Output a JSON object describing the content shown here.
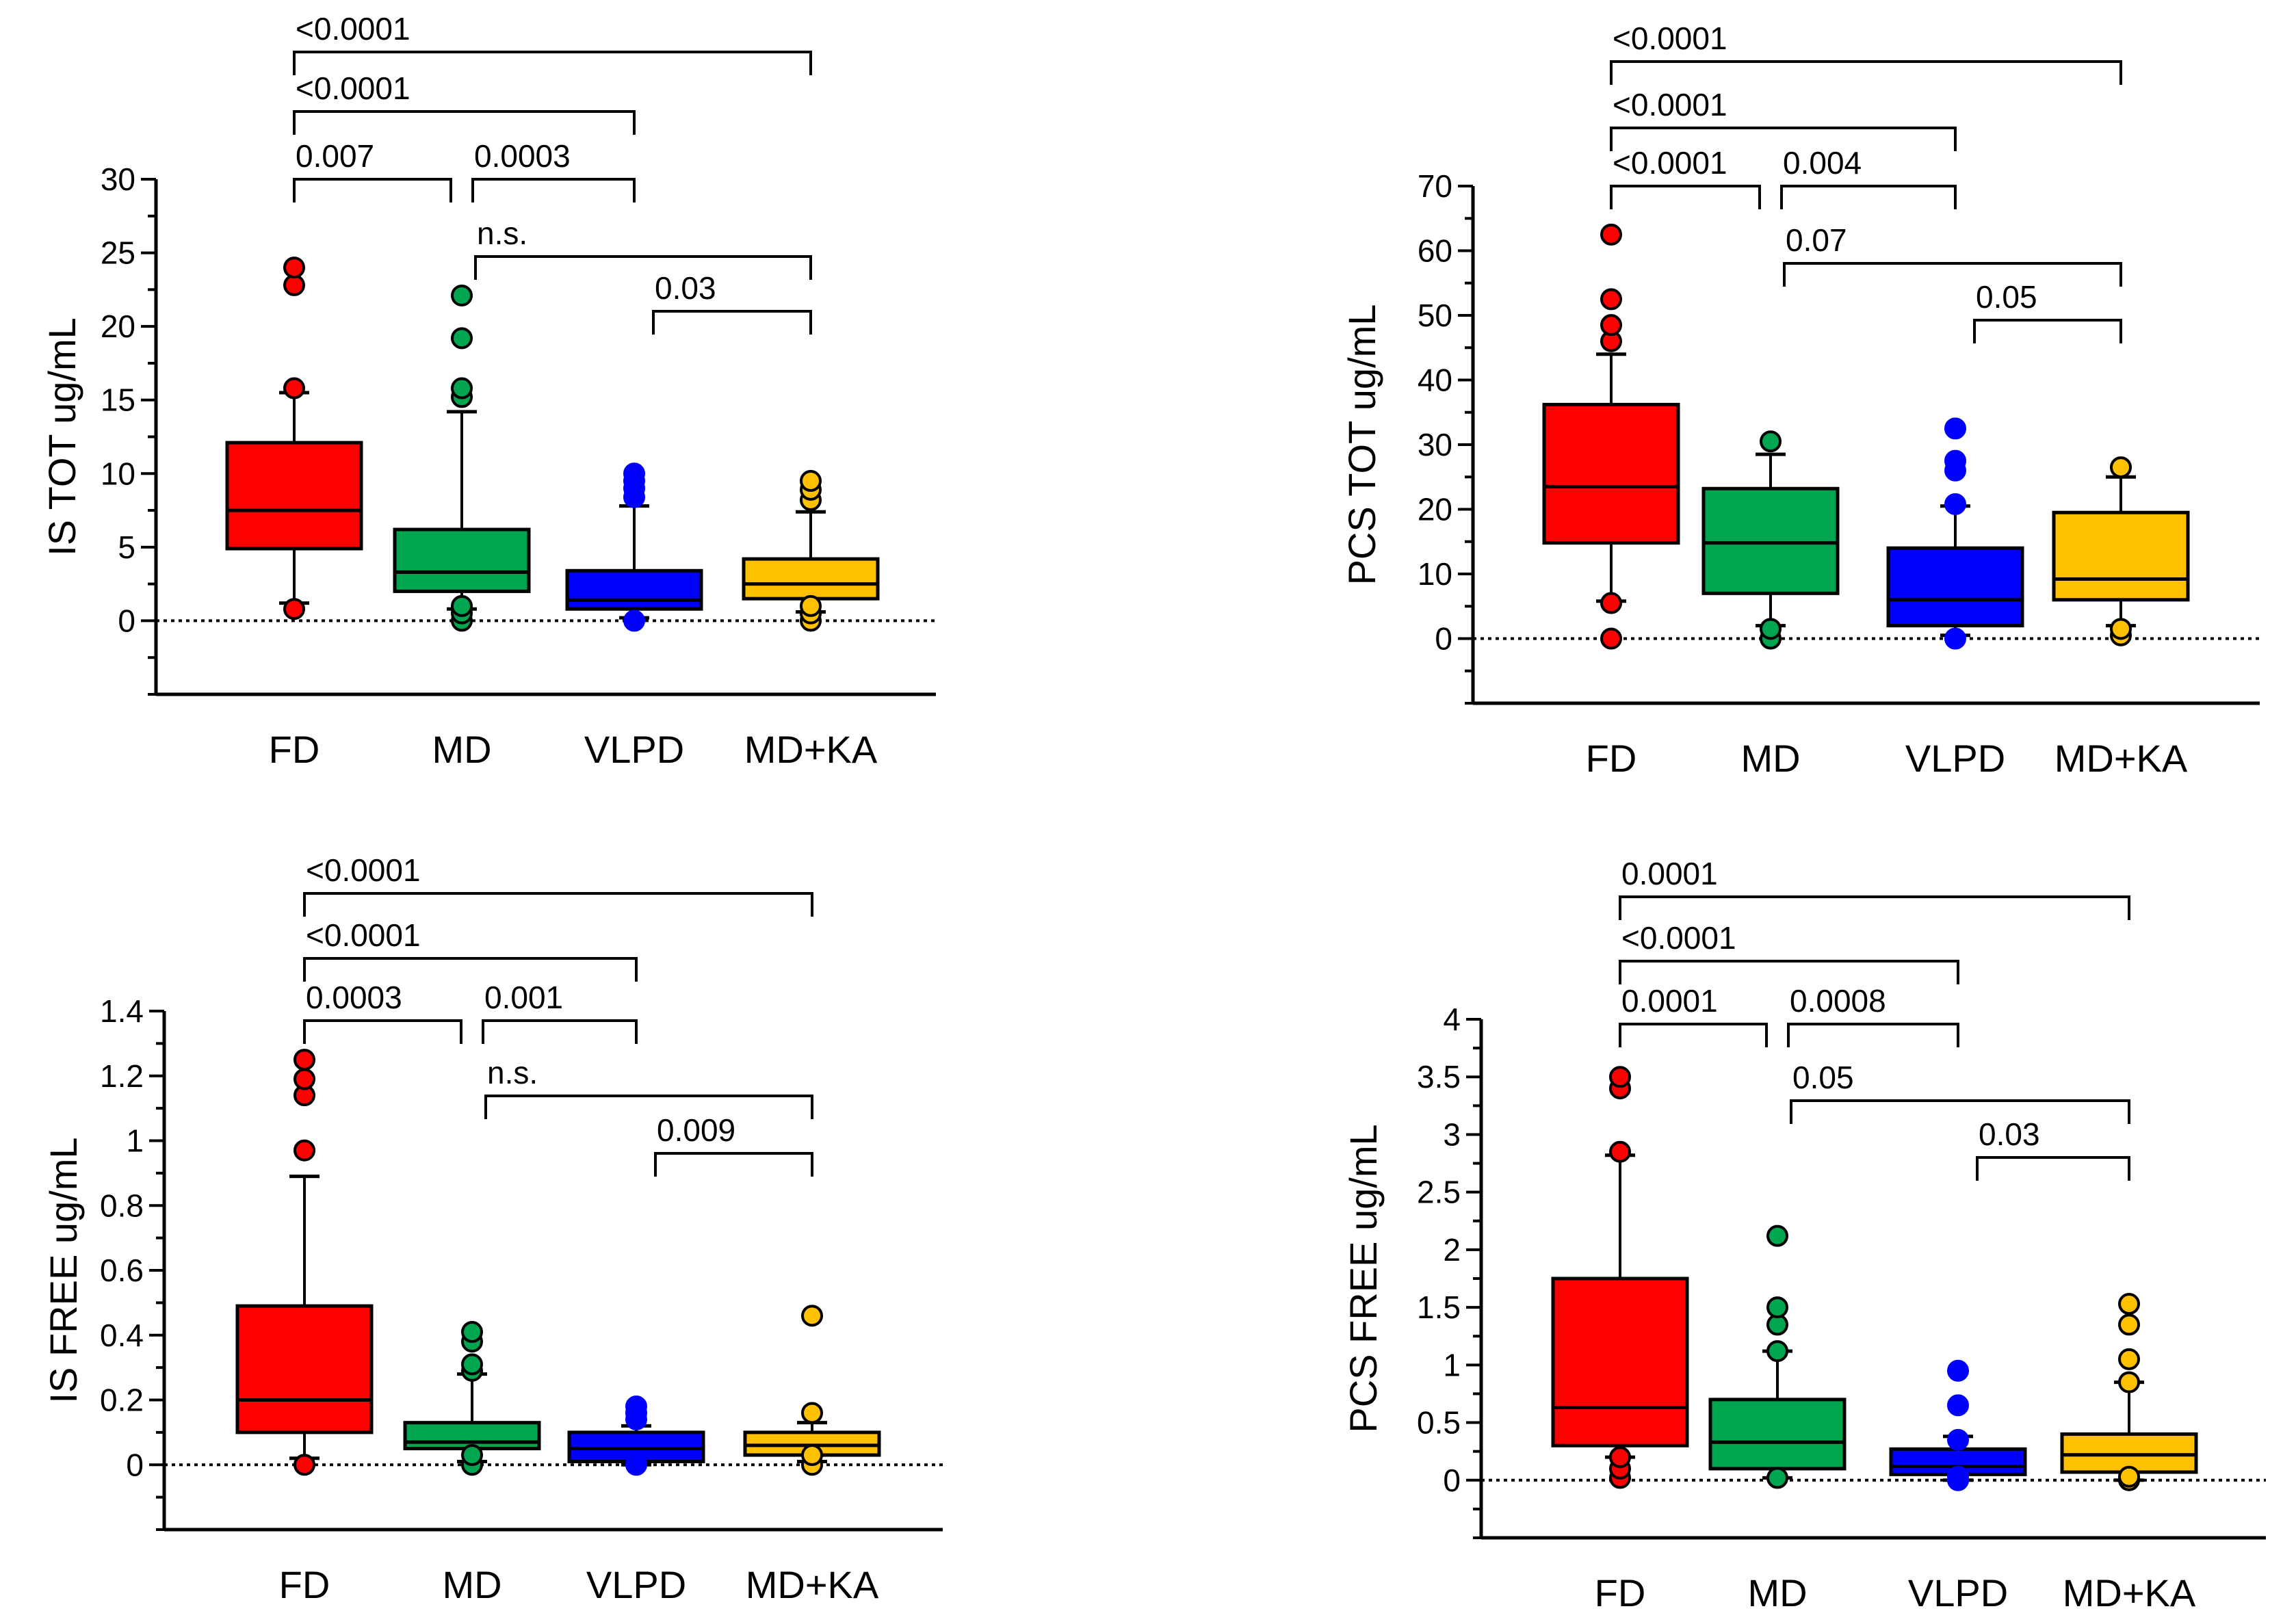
{
  "colors": {
    "FD": "#ff0000",
    "MD": "#00a550",
    "VLPD": "#0000ff",
    "MD+KA": "#ffc000",
    "axis": "#000000"
  },
  "chart_data": [
    {
      "type": "box",
      "ylabel": "IS TOT ug/mL",
      "categories": [
        "FD",
        "MD",
        "VLPD",
        "MD+KA"
      ],
      "yticks": [
        0,
        5,
        10,
        15,
        20,
        25,
        30
      ],
      "ylim": [
        -5,
        30
      ],
      "reference_line": 0,
      "boxes": [
        {
          "category": "FD",
          "q1": 4.9,
          "median": 7.5,
          "q3": 12.1,
          "whisker_low": 1.2,
          "whisker_high": 15.5,
          "outliers": [
            0.8,
            15.8,
            22.8,
            24.0
          ]
        },
        {
          "category": "MD",
          "q1": 2.0,
          "median": 3.3,
          "q3": 6.2,
          "whisker_low": 0.8,
          "whisker_high": 14.2,
          "outliers": [
            0.0,
            0.5,
            1.0,
            15.2,
            15.8,
            19.2,
            22.1
          ]
        },
        {
          "category": "VLPD",
          "q1": 0.8,
          "median": 1.4,
          "q3": 3.4,
          "whisker_low": 0.2,
          "whisker_high": 7.8,
          "outliers": [
            0.0,
            8.4,
            9.0,
            9.5,
            10.0
          ]
        },
        {
          "category": "MD+KA",
          "q1": 1.5,
          "median": 2.5,
          "q3": 4.2,
          "whisker_low": 0.6,
          "whisker_high": 7.4,
          "outliers": [
            0.0,
            0.5,
            1.0,
            8.2,
            8.9,
            9.5
          ]
        }
      ],
      "comparisons": [
        {
          "from": "FD",
          "to": "MD",
          "label": "0.007",
          "level": 0
        },
        {
          "from": "MD",
          "to": "VLPD",
          "label": "0.0003",
          "level": 0
        },
        {
          "from": "FD",
          "to": "VLPD",
          "label": "<0.0001",
          "level": 1
        },
        {
          "from": "FD",
          "to": "MD+KA",
          "label": "<0.0001",
          "level": 2
        },
        {
          "from": "MD",
          "to": "MD+KA",
          "label": "n.s.",
          "level": -1
        },
        {
          "from": "VLPD",
          "to": "MD+KA",
          "label": "0.03",
          "level": -2
        }
      ]
    },
    {
      "type": "box",
      "ylabel": "PCS TOT ug/mL",
      "categories": [
        "FD",
        "MD",
        "VLPD",
        "MD+KA"
      ],
      "yticks": [
        0,
        10,
        20,
        30,
        40,
        50,
        60,
        70
      ],
      "ylim": [
        -10,
        70
      ],
      "reference_line": 0,
      "boxes": [
        {
          "category": "FD",
          "q1": 14.8,
          "median": 23.5,
          "q3": 36.2,
          "whisker_low": 5.8,
          "whisker_high": 44.0,
          "outliers": [
            0.0,
            5.5,
            46.0,
            48.5,
            52.5,
            62.5
          ]
        },
        {
          "category": "MD",
          "q1": 7.0,
          "median": 14.8,
          "q3": 23.2,
          "whisker_low": 2.0,
          "whisker_high": 28.5,
          "outliers": [
            0.0,
            1.5,
            30.5
          ]
        },
        {
          "category": "VLPD",
          "q1": 2.0,
          "median": 6.0,
          "q3": 14.0,
          "whisker_low": 0.5,
          "whisker_high": 20.5,
          "outliers": [
            0.0,
            20.8,
            26.0,
            27.5,
            32.5
          ]
        },
        {
          "category": "MD+KA",
          "q1": 6.0,
          "median": 9.2,
          "q3": 19.5,
          "whisker_low": 2.0,
          "whisker_high": 25.0,
          "outliers": [
            0.5,
            1.5,
            26.5
          ]
        }
      ],
      "comparisons": [
        {
          "from": "FD",
          "to": "MD",
          "label": "<0.0001",
          "level": 0
        },
        {
          "from": "MD",
          "to": "VLPD",
          "label": "0.004",
          "level": 0
        },
        {
          "from": "FD",
          "to": "VLPD",
          "label": "<0.0001",
          "level": 1
        },
        {
          "from": "FD",
          "to": "MD+KA",
          "label": "<0.0001",
          "level": 2
        },
        {
          "from": "MD",
          "to": "MD+KA",
          "label": "0.07",
          "level": -1
        },
        {
          "from": "VLPD",
          "to": "MD+KA",
          "label": "0.05",
          "level": -2
        }
      ]
    },
    {
      "type": "box",
      "ylabel": "IS FREE ug/mL",
      "categories": [
        "FD",
        "MD",
        "VLPD",
        "MD+KA"
      ],
      "yticks": [
        0,
        0.2,
        0.4,
        0.6,
        0.8,
        1,
        1.2,
        1.4
      ],
      "ytick_labels": [
        "0",
        "0.2",
        "0.4",
        "0.6",
        "0.8",
        "1",
        "1.2",
        "1.4"
      ],
      "ylim": [
        -0.2,
        1.4
      ],
      "reference_line": 0,
      "boxes": [
        {
          "category": "FD",
          "q1": 0.1,
          "median": 0.2,
          "q3": 0.49,
          "whisker_low": 0.02,
          "whisker_high": 0.89,
          "outliers": [
            0.0,
            0.97,
            1.14,
            1.19,
            1.25
          ]
        },
        {
          "category": "MD",
          "q1": 0.05,
          "median": 0.07,
          "q3": 0.13,
          "whisker_low": 0.01,
          "whisker_high": 0.28,
          "outliers": [
            0.0,
            0.03,
            0.29,
            0.31,
            0.38,
            0.41
          ]
        },
        {
          "category": "VLPD",
          "q1": 0.01,
          "median": 0.05,
          "q3": 0.1,
          "whisker_low": 0.0,
          "whisker_high": 0.12,
          "outliers": [
            0.0,
            0.14,
            0.16,
            0.18
          ]
        },
        {
          "category": "MD+KA",
          "q1": 0.03,
          "median": 0.06,
          "q3": 0.1,
          "whisker_low": 0.01,
          "whisker_high": 0.13,
          "outliers": [
            0.0,
            0.03,
            0.16,
            0.46
          ]
        }
      ],
      "comparisons": [
        {
          "from": "FD",
          "to": "MD",
          "label": "0.0003",
          "level": 0
        },
        {
          "from": "MD",
          "to": "VLPD",
          "label": "0.001",
          "level": 0
        },
        {
          "from": "FD",
          "to": "VLPD",
          "label": "<0.0001",
          "level": 1
        },
        {
          "from": "FD",
          "to": "MD+KA",
          "label": "<0.0001",
          "level": 2
        },
        {
          "from": "MD",
          "to": "MD+KA",
          "label": "n.s.",
          "level": -1
        },
        {
          "from": "VLPD",
          "to": "MD+KA",
          "label": "0.009",
          "level": -2
        }
      ]
    },
    {
      "type": "box",
      "ylabel": "PCS FREE ug/mL",
      "categories": [
        "FD",
        "MD",
        "VLPD",
        "MD+KA"
      ],
      "yticks": [
        0,
        0.5,
        1,
        1.5,
        2,
        2.5,
        3,
        3.5,
        4
      ],
      "ytick_labels": [
        "0",
        "0.5",
        "1",
        "1.5",
        "2",
        "2.5",
        "3",
        "3.5",
        "4"
      ],
      "ylim": [
        -0.5,
        4
      ],
      "reference_line": 0,
      "boxes": [
        {
          "category": "FD",
          "q1": 0.3,
          "median": 0.63,
          "q3": 1.75,
          "whisker_low": 0.2,
          "whisker_high": 2.82,
          "outliers": [
            0.02,
            0.1,
            0.2,
            2.85,
            3.4,
            3.5
          ]
        },
        {
          "category": "MD",
          "q1": 0.1,
          "median": 0.33,
          "q3": 0.7,
          "whisker_low": 0.02,
          "whisker_high": 1.12,
          "outliers": [
            0.02,
            1.12,
            1.35,
            1.5,
            2.12
          ]
        },
        {
          "category": "VLPD",
          "q1": 0.05,
          "median": 0.12,
          "q3": 0.27,
          "whisker_low": 0.0,
          "whisker_high": 0.38,
          "outliers": [
            0.0,
            0.03,
            0.35,
            0.65,
            0.95
          ]
        },
        {
          "category": "MD+KA",
          "q1": 0.07,
          "median": 0.22,
          "q3": 0.4,
          "whisker_low": 0.0,
          "whisker_high": 0.85,
          "outliers": [
            0.0,
            0.03,
            0.85,
            1.05,
            1.35,
            1.53
          ]
        }
      ],
      "comparisons": [
        {
          "from": "FD",
          "to": "MD",
          "label": "0.0001",
          "level": 0
        },
        {
          "from": "MD",
          "to": "VLPD",
          "label": "0.0008",
          "level": 0
        },
        {
          "from": "FD",
          "to": "VLPD",
          "label": "<0.0001",
          "level": 1
        },
        {
          "from": "FD",
          "to": "MD+KA",
          "label": "0.0001",
          "level": 2
        },
        {
          "from": "MD",
          "to": "MD+KA",
          "label": "0.05",
          "level": -1
        },
        {
          "from": "VLPD",
          "to": "MD+KA",
          "label": "0.03",
          "level": -2
        }
      ]
    }
  ]
}
